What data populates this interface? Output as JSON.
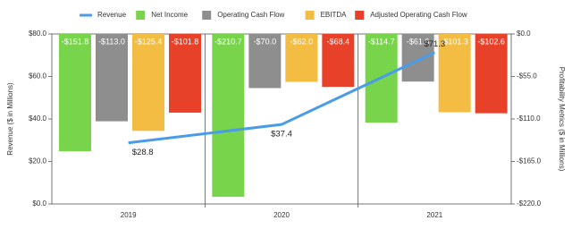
{
  "chart_data": {
    "type": "bar",
    "categories": [
      "2019",
      "2020",
      "2021"
    ],
    "y_label": "Revenue ($ in Millions)",
    "y2_label": "Profitability Metrics ($ in Millions)",
    "ylim": [
      0,
      80
    ],
    "yticks": [
      {
        "value": 0,
        "label": "$0.0"
      },
      {
        "value": 20,
        "label": "$20.0"
      },
      {
        "value": 40,
        "label": "$40.0"
      },
      {
        "value": 60,
        "label": "$60.0"
      },
      {
        "value": 80,
        "label": "$80.0"
      }
    ],
    "y2lim": [
      -220,
      0
    ],
    "y2ticks": [
      {
        "value": -220,
        "label": "-$220.0"
      },
      {
        "value": -165,
        "label": "-$165.0"
      },
      {
        "value": -110,
        "label": "-$110.0"
      },
      {
        "value": -55,
        "label": "-$55.0"
      },
      {
        "value": 0,
        "label": "$0.0"
      }
    ],
    "legend": "top",
    "series": [
      {
        "name": "Revenue",
        "type": "line",
        "color": "#4a9ce8",
        "values": [
          28.8,
          37.4,
          71.3
        ],
        "value_labels": [
          "$28.8",
          "$37.4",
          "$71.3"
        ]
      },
      {
        "name": "Net Income",
        "type": "bar",
        "axis": "y2",
        "color": "#78d44b",
        "values": [
          -151.8,
          -210.7,
          -114.7
        ],
        "value_labels": [
          "-$151.8",
          "-$210.7",
          "-$114.7"
        ]
      },
      {
        "name": "Operating Cash Flow",
        "type": "bar",
        "axis": "y2",
        "color": "#8e8e8e",
        "values": [
          -113.0,
          -70.0,
          -61.6
        ],
        "value_labels": [
          "-$113.0",
          "-$70.0",
          "-$61.6"
        ]
      },
      {
        "name": "EBITDA",
        "type": "bar",
        "axis": "y2",
        "color": "#f2bd42",
        "values": [
          -125.4,
          -62.0,
          -101.3
        ],
        "value_labels": [
          "-$125.4",
          "-$62.0",
          "-$101.3"
        ]
      },
      {
        "name": "Adjusted Operating Cash Flow",
        "type": "bar",
        "axis": "y2",
        "color": "#e8412a",
        "values": [
          -101.8,
          -68.4,
          -102.6
        ],
        "value_labels": [
          "-$101.8",
          "-$68.4",
          "-$102.6"
        ]
      }
    ]
  }
}
